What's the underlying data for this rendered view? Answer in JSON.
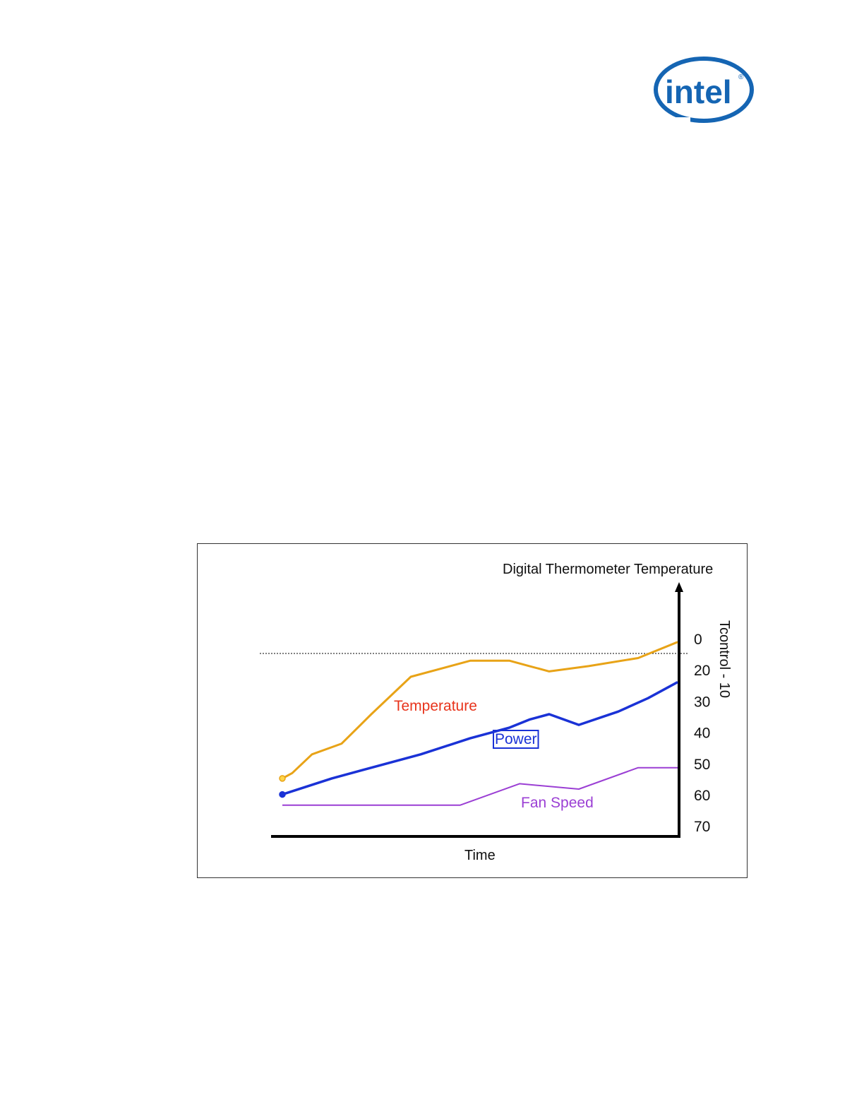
{
  "logo": {
    "text": "intel",
    "mark": "®",
    "color": "#1565b3"
  },
  "chart_data": {
    "type": "line",
    "yaxis_title": "Digital Thermometer Temperature",
    "xlabel": "Time",
    "y_ticks": [
      "0",
      "20",
      "30",
      "40",
      "50",
      "60",
      "70"
    ],
    "threshold_label": "Tcontrol - 10",
    "threshold_value": 10,
    "y_inverted": true,
    "ylim": [
      0,
      70
    ],
    "series": [
      {
        "name": "Temperature",
        "color": "#e8a317",
        "label_color": "#e8341c",
        "values": [
          [
            0,
            52
          ],
          [
            2,
            50
          ],
          [
            6,
            43
          ],
          [
            12,
            39
          ],
          [
            18,
            28
          ],
          [
            26,
            14
          ],
          [
            38,
            8
          ],
          [
            46,
            8
          ],
          [
            50,
            10
          ],
          [
            54,
            12
          ],
          [
            62,
            10
          ],
          [
            72,
            7
          ],
          [
            80,
            1
          ]
        ]
      },
      {
        "name": "Power",
        "color": "#1a32d6",
        "label_color": "#1a32d6",
        "boxed_label": true,
        "values": [
          [
            0,
            58
          ],
          [
            10,
            52
          ],
          [
            20,
            47
          ],
          [
            28,
            43
          ],
          [
            38,
            37
          ],
          [
            46,
            33
          ],
          [
            50,
            30
          ],
          [
            54,
            28
          ],
          [
            60,
            32
          ],
          [
            68,
            27
          ],
          [
            74,
            22
          ],
          [
            80,
            16
          ]
        ]
      },
      {
        "name": "Fan Speed",
        "color": "#9b3fd4",
        "label_color": "#9b3fd4",
        "values": [
          [
            0,
            62
          ],
          [
            36,
            62
          ],
          [
            48,
            54
          ],
          [
            60,
            56
          ],
          [
            72,
            48
          ],
          [
            80,
            48
          ]
        ]
      }
    ]
  }
}
